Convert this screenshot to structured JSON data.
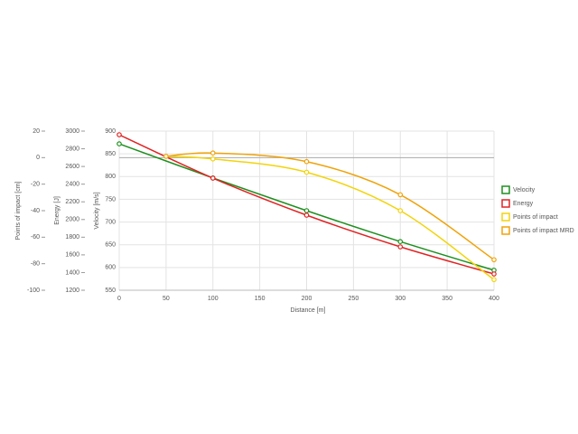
{
  "chart_data": {
    "type": "line",
    "x_label": "Distance [m]",
    "xlim": [
      0,
      400
    ],
    "xticks": [
      0,
      50,
      100,
      150,
      200,
      250,
      300,
      350,
      400
    ],
    "y_label": "Velocity [m/s]",
    "ylim": [
      550,
      900
    ],
    "yticks": [
      550,
      600,
      650,
      700,
      750,
      800,
      850,
      900
    ],
    "y2_label": "Energy [J]",
    "y2lim": [
      1200,
      3000
    ],
    "y2ticks": [
      1200,
      1400,
      1600,
      1800,
      2000,
      2200,
      2400,
      2600,
      2800,
      3000
    ],
    "y3_label": "Points of impact [cm]",
    "y3lim": [
      -100,
      20
    ],
    "y3ticks": [
      -100,
      -80,
      -60,
      -40,
      -20,
      0,
      20
    ],
    "grid": true,
    "legend": "right",
    "series": [
      {
        "name": "Velocity",
        "color": "#1f8f1f",
        "axis": "y",
        "x": [
          0,
          100,
          200,
          300,
          400
        ],
        "values": [
          872,
          797,
          725,
          657,
          594
        ]
      },
      {
        "name": "Energy",
        "color": "#e02424",
        "axis": "y2",
        "x": [
          0,
          100,
          200,
          300,
          400
        ],
        "values": [
          2959,
          2468,
          2049,
          1691,
          1384
        ]
      },
      {
        "name": "Points of impact",
        "color": "#f2d40c",
        "axis": "y3",
        "x": [
          50,
          100,
          200,
          300,
          400
        ],
        "values": [
          1,
          -1,
          -11,
          -40,
          -92
        ]
      },
      {
        "name": "Points of impact MRD",
        "color": "#f0a30a",
        "axis": "y3",
        "x": [
          50,
          100,
          200,
          300,
          400
        ],
        "values": [
          1,
          3.5,
          -3,
          -28,
          -77
        ]
      }
    ]
  }
}
